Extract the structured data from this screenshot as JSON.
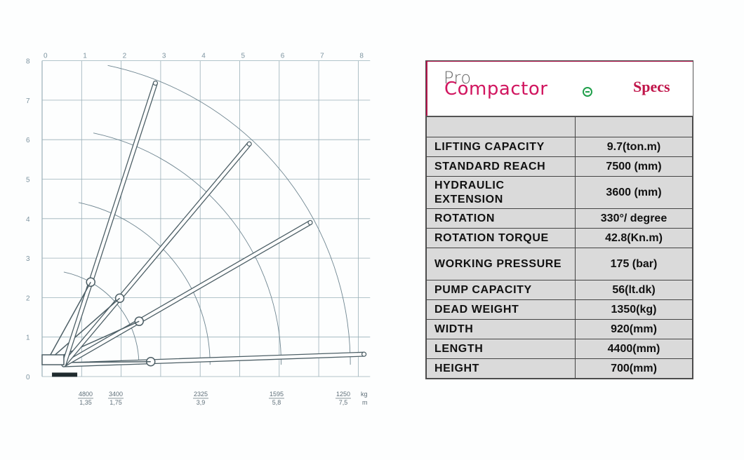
{
  "diagram": {
    "x_ticks": [
      "0",
      "1",
      "2",
      "3",
      "4",
      "5",
      "6",
      "7",
      "8"
    ],
    "y_ticks": [
      "0",
      "1",
      "2",
      "3",
      "4",
      "5",
      "6",
      "7",
      "8"
    ],
    "load_table": [
      {
        "kg": "4800",
        "m": "1,35"
      },
      {
        "kg": "3400",
        "m": "1,75"
      },
      {
        "kg": "2325",
        "m": "3,9"
      },
      {
        "kg": "1595",
        "m": "5,8"
      },
      {
        "kg": "1250",
        "m": "7,5"
      }
    ],
    "unit_kg": "kg",
    "unit_m": "m",
    "reach_radii_m": [
      2.4,
      4.2,
      6.0,
      7.75
    ],
    "boom_angles_deg": [
      2,
      30,
      50,
      72
    ]
  },
  "brand": {
    "pro": "Pro",
    "compactor": "Compactor",
    "specs": "Specs",
    "accent": "#d1155f"
  },
  "specs": [
    {
      "label": "LIFTING CAPACITY",
      "value": "9.7(ton.m)"
    },
    {
      "label": "STANDARD REACH",
      "value": "7500 (mm)"
    },
    {
      "label": "HYDRAULIC EXTENSION",
      "value": "3600 (mm)"
    },
    {
      "label": "ROTATION",
      "value": "330°/  degree"
    },
    {
      "label": "ROTATION TORQUE",
      "value": "42.8(Kn.m)"
    },
    {
      "label": "WORKING PRESSURE",
      "value": "175 (bar)"
    },
    {
      "label": "PUMP CAPACITY",
      "value": "56(lt.dk)"
    },
    {
      "label": "DEAD WEIGHT",
      "value": "1350(kg)"
    },
    {
      "label": "WIDTH",
      "value": "920(mm)"
    },
    {
      "label": "LENGTH",
      "value": "4400(mm)"
    },
    {
      "label": "HEIGHT",
      "value": "700(mm)"
    }
  ]
}
